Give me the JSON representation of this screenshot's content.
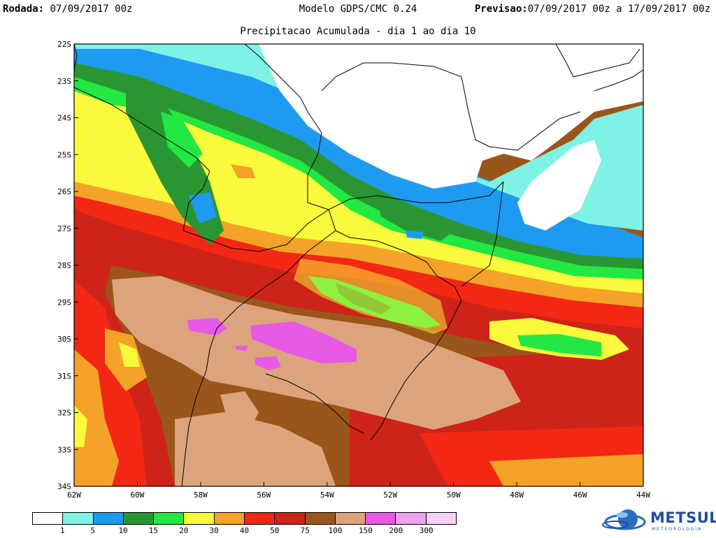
{
  "header": {
    "run_label": "Rodada:",
    "run_value": "07/09/2017 00z",
    "model": "Modelo GDPS/CMC 0.24",
    "forecast_label": "Previsao:",
    "forecast_value": "07/09/2017 00z a 17/09/2017 00z"
  },
  "subtitle": "Precipitacao Acumulada - dia 1 ao dia 10",
  "map": {
    "lat_ticks": [
      "22S",
      "23S",
      "24S",
      "25S",
      "26S",
      "27S",
      "28S",
      "29S",
      "30S",
      "31S",
      "32S",
      "33S",
      "34S"
    ],
    "lon_ticks": [
      "62W",
      "60W",
      "58W",
      "56W",
      "54W",
      "52W",
      "50W",
      "48W",
      "46W",
      "44W"
    ],
    "lon_range": [
      -62,
      -44
    ],
    "lat_range": [
      -34,
      -22
    ]
  },
  "legend": {
    "colors": [
      "#ffffff",
      "#7ff2e6",
      "#1e9bf0",
      "#2a9632",
      "#23e843",
      "#fafa3c",
      "#f5a228",
      "#f22814",
      "#cd2318",
      "#9a561a",
      "#dca47c",
      "#e65ae6",
      "#f0a0f0",
      "#f8d2f8"
    ],
    "labels": [
      "1",
      "5",
      "10",
      "15",
      "20",
      "30",
      "40",
      "50",
      "75",
      "100",
      "150",
      "200",
      "300"
    ]
  },
  "logo": {
    "name": "METSUL",
    "sub": "METEOROLOGIA"
  }
}
